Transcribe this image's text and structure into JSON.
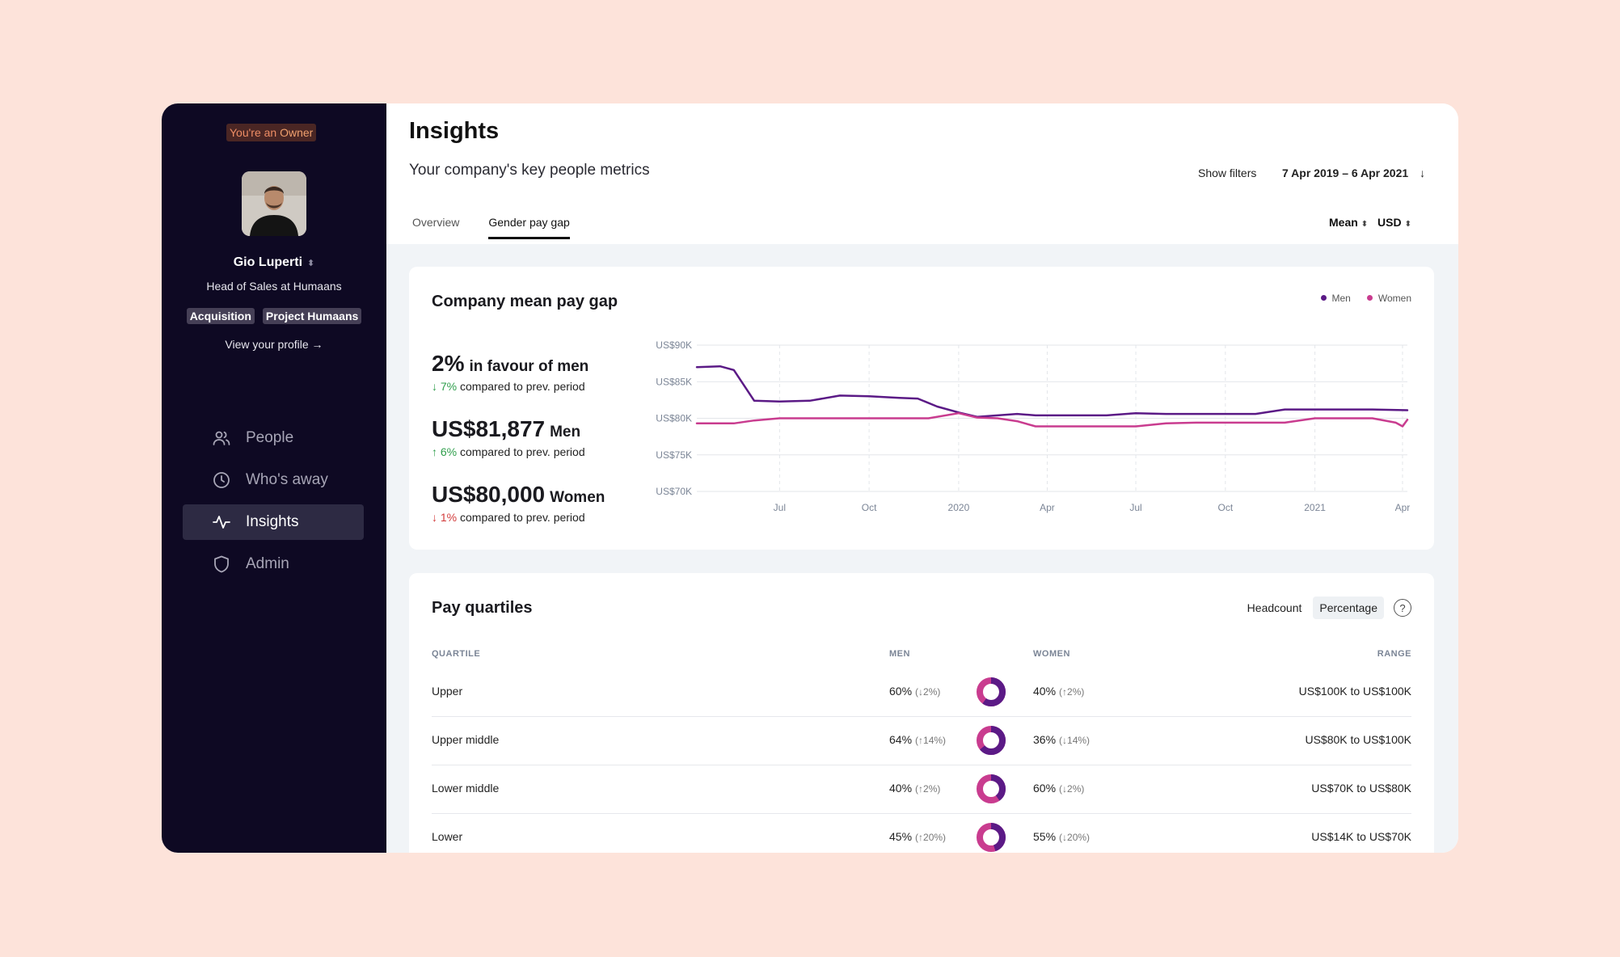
{
  "sidebar": {
    "owner_badge_prefix": "You're an ",
    "owner_badge_role": "Owner",
    "profile": {
      "name": "Gio Luperti",
      "role": "Head of Sales at Humaans",
      "tags": [
        "Acquisition",
        "Project Humaans"
      ],
      "view_profile": "View your profile →"
    },
    "nav": [
      {
        "label": "People",
        "icon": "people-icon"
      },
      {
        "label": "Who's away",
        "icon": "clock-icon"
      },
      {
        "label": "Insights",
        "icon": "activity-icon",
        "active": true
      },
      {
        "label": "Admin",
        "icon": "shield-icon"
      }
    ]
  },
  "header": {
    "title": "Insights",
    "subtitle": "Your company's key people metrics",
    "show_filters": "Show filters",
    "date_range": "7 Apr 2019 – 6 Apr 2021",
    "tabs": [
      {
        "label": "Overview",
        "active": false
      },
      {
        "label": "Gender pay gap",
        "active": true
      }
    ],
    "measure": "Mean",
    "currency": "USD"
  },
  "pay_gap_card": {
    "title": "Company mean pay gap",
    "legend": [
      {
        "name": "Men",
        "color": "#5b1a86"
      },
      {
        "name": "Women",
        "color": "#c93c8f"
      }
    ],
    "stats": [
      {
        "value": "2%",
        "label": "in favour of men",
        "delta": "↓ 7%",
        "delta_text": "compared to prev. period",
        "delta_color": "green"
      },
      {
        "value": "US$81,877",
        "label": "Men",
        "delta": "↑ 6%",
        "delta_text": "compared to prev. period",
        "delta_color": "green"
      },
      {
        "value": "US$80,000",
        "label": "Women",
        "delta": "↓ 1%",
        "delta_text": "compared to prev. period",
        "delta_color": "red"
      }
    ]
  },
  "chart_data": {
    "type": "line",
    "title": "",
    "xlabel": "",
    "ylabel": "",
    "y_ticks": [
      "US$90K",
      "US$85K",
      "US$80K",
      "US$75K",
      "US$70K"
    ],
    "x_ticks": [
      "Jul",
      "Oct",
      "2020",
      "Apr",
      "Jul",
      "Oct",
      "2021",
      "Apr"
    ],
    "ylim": [
      70000,
      90000
    ],
    "grid": true,
    "series": [
      {
        "name": "Men",
        "color": "#5b1a86",
        "x": [
          "2019-04-07",
          "2019-05-01",
          "2019-05-15",
          "2019-06-05",
          "2019-07-01",
          "2019-08-01",
          "2019-09-01",
          "2019-10-01",
          "2019-11-01",
          "2019-11-20",
          "2019-12-10",
          "2020-01-01",
          "2020-01-20",
          "2020-02-10",
          "2020-03-01",
          "2020-03-20",
          "2020-04-10",
          "2020-05-01",
          "2020-06-01",
          "2020-07-01",
          "2020-08-01",
          "2020-09-01",
          "2020-10-01",
          "2020-11-01",
          "2020-12-01",
          "2021-01-01",
          "2021-02-01",
          "2021-03-01",
          "2021-04-06"
        ],
        "values": [
          87000,
          87100,
          86600,
          82400,
          82300,
          82400,
          83100,
          83000,
          82800,
          82700,
          81600,
          80800,
          80200,
          80400,
          80600,
          80400,
          80400,
          80400,
          80400,
          80700,
          80600,
          80600,
          80600,
          80600,
          81200,
          81200,
          81200,
          81200,
          81100
        ]
      },
      {
        "name": "Women",
        "color": "#c93c8f",
        "x": [
          "2019-04-07",
          "2019-05-15",
          "2019-06-05",
          "2019-07-01",
          "2019-08-01",
          "2019-09-01",
          "2019-10-01",
          "2019-11-01",
          "2019-12-01",
          "2020-01-01",
          "2020-01-20",
          "2020-02-10",
          "2020-03-01",
          "2020-03-20",
          "2020-04-10",
          "2020-05-01",
          "2020-06-01",
          "2020-07-01",
          "2020-08-01",
          "2020-09-01",
          "2020-10-01",
          "2020-11-01",
          "2020-12-01",
          "2021-01-01",
          "2021-02-01",
          "2021-03-01",
          "2021-03-25",
          "2021-04-01",
          "2021-04-06"
        ],
        "values": [
          79300,
          79300,
          79700,
          80000,
          80000,
          80000,
          80000,
          80000,
          80000,
          80700,
          80100,
          80000,
          79600,
          78900,
          78900,
          78900,
          78900,
          78900,
          79300,
          79400,
          79400,
          79400,
          79400,
          80000,
          80000,
          80000,
          79400,
          78900,
          79800
        ]
      }
    ]
  },
  "quartiles_card": {
    "title": "Pay quartiles",
    "modes": [
      {
        "label": "Headcount",
        "active": false
      },
      {
        "label": "Percentage",
        "active": true
      }
    ],
    "help": "?",
    "columns": [
      "QUARTILE",
      "MEN",
      "WOMEN",
      "RANGE"
    ],
    "rows": [
      {
        "quartile": "Upper",
        "men": "60%",
        "men_change": "(↓2%)",
        "women": "40%",
        "women_change": "(↑2%)",
        "men_share": 0.6,
        "range": "US$100K to US$100K"
      },
      {
        "quartile": "Upper middle",
        "men": "64%",
        "men_change": "(↑14%)",
        "women": "36%",
        "women_change": "(↓14%)",
        "men_share": 0.64,
        "range": "US$80K to US$100K"
      },
      {
        "quartile": "Lower middle",
        "men": "40%",
        "men_change": "(↑2%)",
        "women": "60%",
        "women_change": "(↓2%)",
        "men_share": 0.4,
        "range": "US$70K to US$80K"
      },
      {
        "quartile": "Lower",
        "men": "45%",
        "men_change": "(↑20%)",
        "women": "55%",
        "women_change": "(↓20%)",
        "men_share": 0.45,
        "range": "US$14K to US$70K"
      }
    ]
  }
}
